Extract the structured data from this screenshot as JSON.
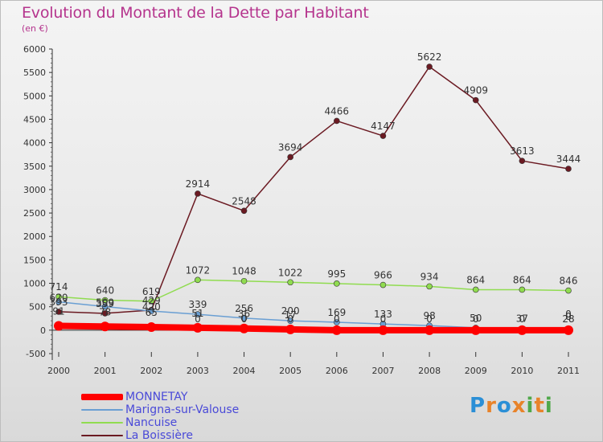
{
  "title": "Evolution du Montant de la Dette par Habitant",
  "subtitle": "(en €)",
  "logo_text": "Proxiti",
  "chart_data": {
    "type": "line",
    "categories": [
      "2000",
      "2001",
      "2002",
      "2003",
      "2004",
      "2005",
      "2006",
      "2007",
      "2008",
      "2009",
      "2010",
      "2011"
    ],
    "ylim": [
      -500,
      6000
    ],
    "yticks": [
      -500,
      0,
      500,
      1000,
      1500,
      2000,
      2500,
      3000,
      3500,
      4000,
      4500,
      5000,
      5500,
      6000
    ],
    "grid": false,
    "legend_position": "bottom-left",
    "series": [
      {
        "name": "MONNETAY",
        "color": "#ff0000",
        "values": [
          91,
          78,
          65,
          51,
          36,
          17,
          0,
          0,
          0,
          0,
          0,
          0
        ],
        "labels": [
          "91",
          "78",
          "65",
          "51",
          "36",
          "17",
          "",
          "",
          "",
          "",
          "",
          ""
        ]
      },
      {
        "name": "Marigna-sur-Valouse",
        "color": "#6a9fd3",
        "values": [
          604,
          503,
          408,
          339,
          256,
          200,
          169,
          133,
          98,
          50,
          37,
          28
        ],
        "labels": [
          "",
          "",
          "",
          "339",
          "256",
          "200",
          "169",
          "133",
          "98",
          "50",
          "37",
          "28"
        ]
      },
      {
        "name": "Nancuise",
        "color": "#90dc50",
        "values": [
          714,
          640,
          619,
          1072,
          1048,
          1022,
          995,
          966,
          934,
          864,
          864,
          846
        ],
        "labels": [
          "714",
          "640",
          "619",
          "1072",
          "1048",
          "1022",
          "995",
          "966",
          "934",
          "864",
          "864",
          "846"
        ]
      },
      {
        "name": "La Boissière",
        "color": "#6b1a22",
        "values": [
          393,
          359,
          429,
          2914,
          2548,
          3694,
          4466,
          4147,
          5622,
          4909,
          3613,
          3444
        ],
        "labels": [
          "393",
          "359",
          "429",
          "2914",
          "2548",
          "3694",
          "4466",
          "4147",
          "5622",
          "4909",
          "3613",
          "3444"
        ]
      }
    ],
    "extra_labels": [
      "620",
      "509",
      "420",
      "0",
      "0",
      "0",
      "0",
      "0",
      "0",
      "0",
      "0"
    ],
    "overlap_labels": [
      "0",
      "0"
    ]
  },
  "legend": [
    {
      "label": "MONNETAY",
      "color": "#ff0000",
      "thickness": 8
    },
    {
      "label": "Marigna-sur-Valouse",
      "color": "#6a9fd3",
      "thickness": 2
    },
    {
      "label": "Nancuise",
      "color": "#90dc50",
      "thickness": 2
    },
    {
      "label": "La Boissière",
      "color": "#6b1a22",
      "thickness": 2
    }
  ]
}
